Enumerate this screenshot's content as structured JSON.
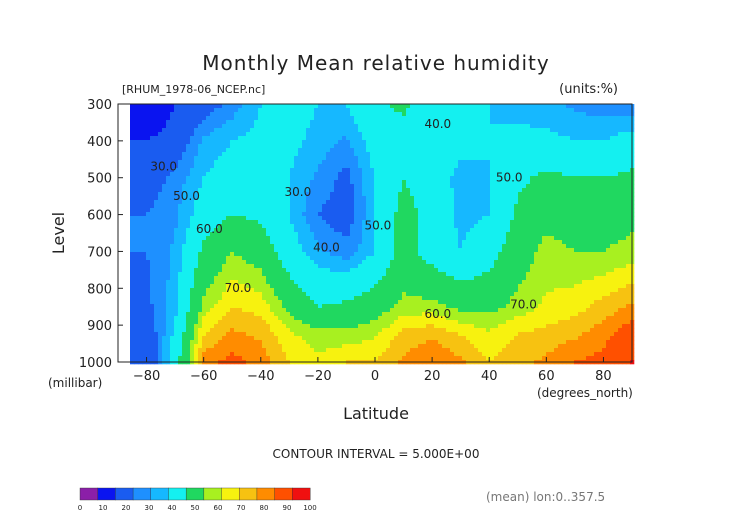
{
  "chart_data": {
    "type": "contour",
    "title": "Monthly Mean relative humidity",
    "dataset_label": "[RHUM_1978-06_NCEP.nc]",
    "units_label": "(units:%)",
    "xlabel": "Latitude",
    "ylabel": "Level",
    "x_units": "(degrees_north)",
    "y_units": "(millibar)",
    "xlim": [
      -90,
      90
    ],
    "ylim": [
      1000,
      300
    ],
    "x_ticks": [
      -80,
      -60,
      -40,
      -20,
      0,
      20,
      40,
      60,
      80
    ],
    "y_ticks": [
      300,
      400,
      500,
      600,
      700,
      800,
      900,
      1000
    ],
    "contour_interval_text": "CONTOUR INTERVAL = 5.000E+00",
    "averaging_text": "(mean) lon:0..357.5",
    "contour_labels": [
      {
        "text": "30.0",
        "lat": -74,
        "p": 480
      },
      {
        "text": "50.0",
        "lat": -66,
        "p": 560
      },
      {
        "text": "60.0",
        "lat": -58,
        "p": 650
      },
      {
        "text": "70.0",
        "lat": -48,
        "p": 810
      },
      {
        "text": "30.0",
        "lat": -27,
        "p": 550
      },
      {
        "text": "40.0",
        "lat": -17,
        "p": 700
      },
      {
        "text": "50.0",
        "lat": 1,
        "p": 640
      },
      {
        "text": "40.0",
        "lat": 22,
        "p": 365
      },
      {
        "text": "50.0",
        "lat": 47,
        "p": 510
      },
      {
        "text": "60.0",
        "lat": 22,
        "p": 880
      },
      {
        "text": "70.0",
        "lat": 52,
        "p": 855
      }
    ],
    "colorbar": {
      "ticks": [
        "0",
        "10",
        "20",
        "30",
        "40",
        "50",
        "60",
        "70",
        "80",
        "90",
        "100"
      ],
      "colors": [
        "#8b1fa8",
        "#0a14f0",
        "#1a5cf0",
        "#1e90ff",
        "#16b8ff",
        "#14f0f0",
        "#20d860",
        "#a8f020",
        "#f7f20f",
        "#f7c211",
        "#ff8c00",
        "#ff5000",
        "#f01010"
      ]
    },
    "grid": {
      "lats": [
        -90,
        -80,
        -70,
        -60,
        -50,
        -40,
        -30,
        -20,
        -10,
        0,
        10,
        20,
        30,
        40,
        50,
        60,
        70,
        80,
        90
      ],
      "levels": [
        1000,
        925,
        850,
        700,
        600,
        500,
        400,
        300
      ],
      "values": [
        [
          null,
          22,
          45,
          78,
          82,
          78,
          70,
          66,
          70,
          70,
          76,
          80,
          76,
          70,
          74,
          76,
          80,
          82,
          90
        ],
        [
          null,
          24,
          42,
          70,
          76,
          74,
          66,
          62,
          62,
          64,
          72,
          74,
          70,
          66,
          70,
          72,
          74,
          78,
          84
        ],
        [
          null,
          28,
          38,
          62,
          70,
          68,
          58,
          50,
          52,
          56,
          62,
          62,
          58,
          58,
          62,
          66,
          68,
          72,
          76
        ],
        [
          null,
          30,
          36,
          52,
          60,
          56,
          44,
          36,
          32,
          40,
          54,
          46,
          40,
          46,
          56,
          62,
          60,
          60,
          62
        ],
        [
          null,
          30,
          34,
          44,
          50,
          48,
          40,
          30,
          26,
          40,
          54,
          46,
          38,
          40,
          52,
          58,
          56,
          56,
          58
        ],
        [
          null,
          26,
          32,
          40,
          44,
          46,
          40,
          34,
          28,
          40,
          50,
          44,
          38,
          40,
          48,
          52,
          50,
          50,
          52
        ],
        [
          null,
          20,
          24,
          36,
          40,
          42,
          42,
          38,
          34,
          44,
          46,
          46,
          42,
          40,
          42,
          42,
          40,
          40,
          44
        ],
        [
          null,
          10,
          20,
          26,
          32,
          40,
          44,
          40,
          40,
          48,
          52,
          44,
          40,
          40,
          38,
          36,
          34,
          32,
          30
        ]
      ]
    }
  }
}
